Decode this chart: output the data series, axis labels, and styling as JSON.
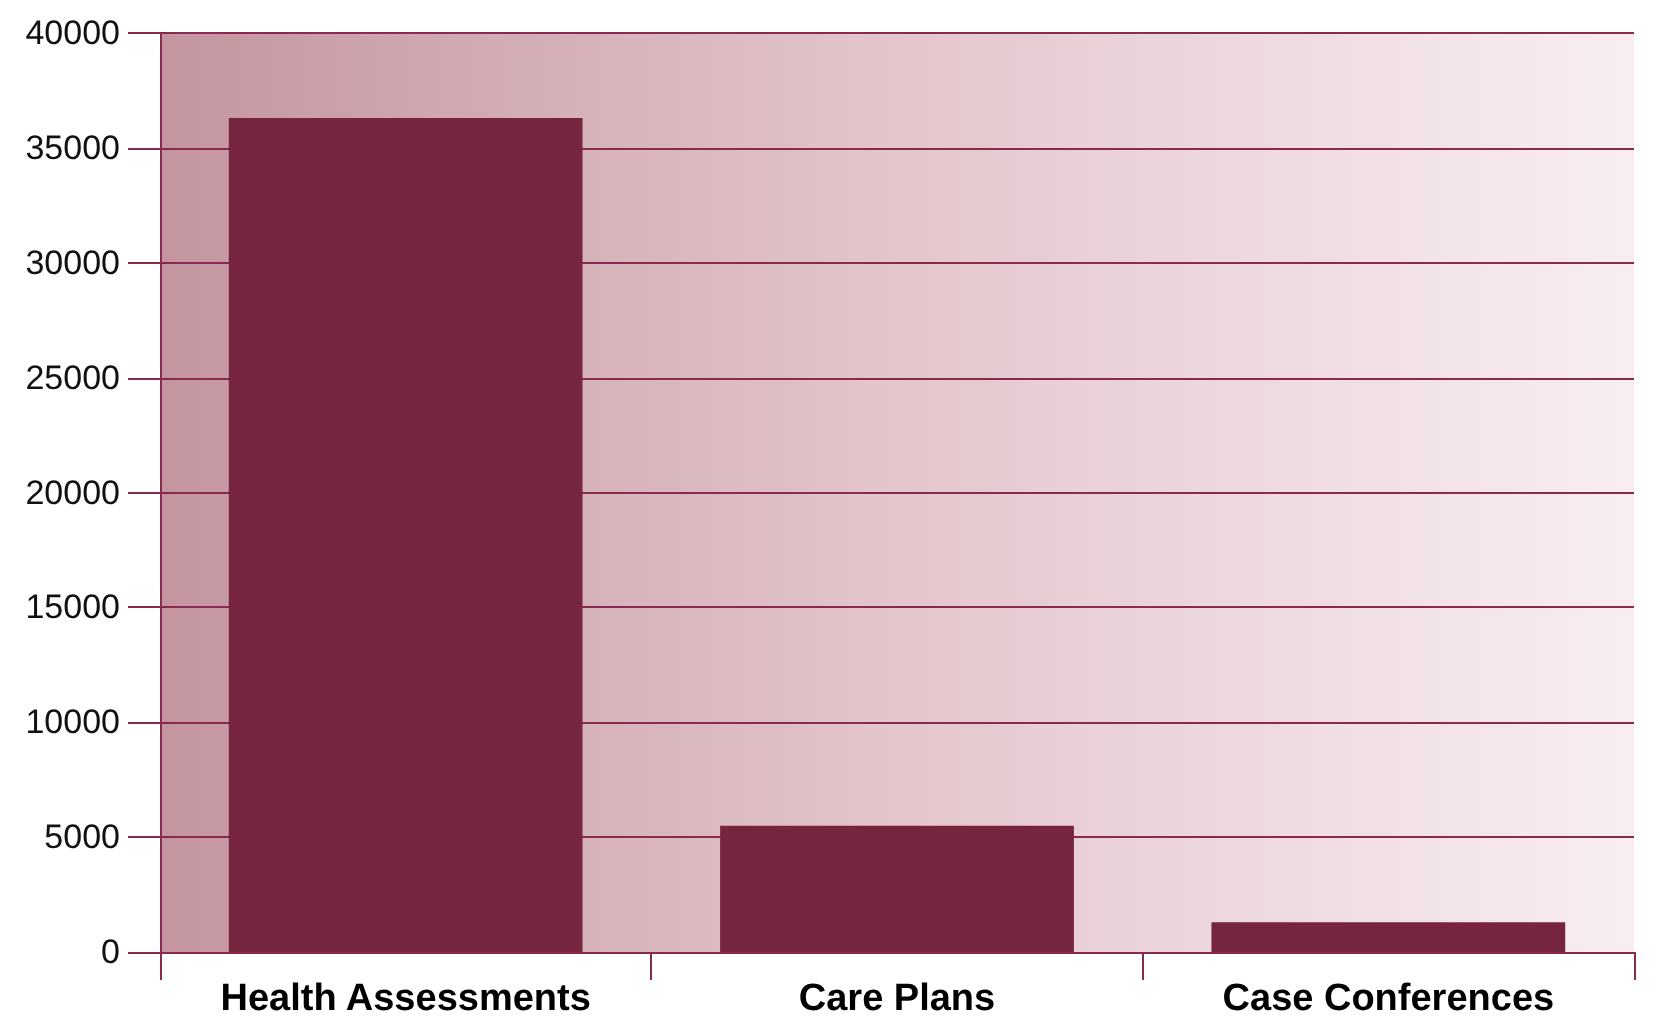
{
  "chart_data": {
    "type": "bar",
    "categories": [
      "Health Assessments",
      "Care Plans",
      "Case Conferences"
    ],
    "values": [
      36300,
      5500,
      1300
    ],
    "color": "#77243f",
    "ylim": [
      0,
      40000
    ],
    "yticks": [
      0,
      5000,
      10000,
      15000,
      20000,
      25000,
      30000,
      35000,
      40000
    ],
    "grid": "y"
  }
}
